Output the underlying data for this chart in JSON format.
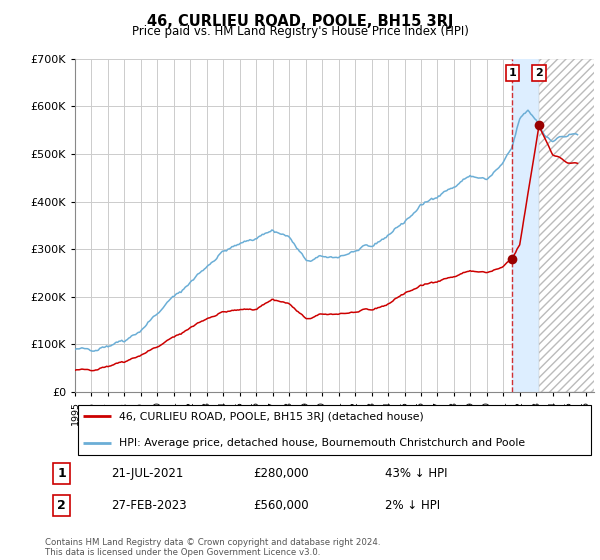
{
  "title": "46, CURLIEU ROAD, POOLE, BH15 3RJ",
  "subtitle": "Price paid vs. HM Land Registry's House Price Index (HPI)",
  "legend_line1": "46, CURLIEU ROAD, POOLE, BH15 3RJ (detached house)",
  "legend_line2": "HPI: Average price, detached house, Bournemouth Christchurch and Poole",
  "transaction1_date": "21-JUL-2021",
  "transaction1_price": "£280,000",
  "transaction1_pct": "43% ↓ HPI",
  "transaction2_date": "27-FEB-2023",
  "transaction2_price": "£560,000",
  "transaction2_pct": "2% ↓ HPI",
  "footer": "Contains HM Land Registry data © Crown copyright and database right 2024.\nThis data is licensed under the Open Government Licence v3.0.",
  "hpi_color": "#6baed6",
  "price_color": "#cc0000",
  "marker_color": "#990000",
  "highlight_color": "#ddeeff",
  "dashed_color": "#cc0000",
  "grid_color": "#cccccc",
  "ylim": [
    0,
    700000
  ],
  "xlim_start": 1995,
  "xlim_end": 2026.5,
  "transaction1_year": 2021.54,
  "transaction2_year": 2023.16,
  "transaction1_price_val": 280000,
  "transaction2_price_val": 560000,
  "hpi_keypoints_x": [
    1995,
    1996,
    1997,
    1998,
    1999,
    2000,
    2001,
    2002,
    2003,
    2004,
    2005,
    2006,
    2007,
    2008,
    2009,
    2010,
    2011,
    2012,
    2013,
    2014,
    2015,
    2016,
    2017,
    2018,
    2019,
    2020,
    2021,
    2021.5,
    2022,
    2022.5,
    2023.0,
    2023.5,
    2024,
    2024.5,
    2025,
    2025.5
  ],
  "hpi_keypoints_y": [
    88000,
    90000,
    98000,
    110000,
    130000,
    165000,
    200000,
    230000,
    265000,
    295000,
    310000,
    325000,
    340000,
    325000,
    275000,
    282000,
    285000,
    295000,
    305000,
    330000,
    358000,
    390000,
    415000,
    430000,
    455000,
    445000,
    480000,
    510000,
    575000,
    590000,
    572000,
    540000,
    530000,
    535000,
    540000,
    540000
  ],
  "price_keypoints_x": [
    1995,
    1996,
    1997,
    1998,
    1999,
    2000,
    2001,
    2002,
    2003,
    2004,
    2005,
    2006,
    2007,
    2008,
    2009,
    2010,
    2011,
    2012,
    2013,
    2014,
    2015,
    2016,
    2017,
    2018,
    2019,
    2020,
    2021.0,
    2021.54,
    2022.0,
    2023.16,
    2023.5,
    2024,
    2025
  ],
  "price_keypoints_y": [
    45000,
    47000,
    55000,
    65000,
    78000,
    95000,
    115000,
    135000,
    155000,
    168000,
    172000,
    175000,
    195000,
    185000,
    153000,
    162000,
    165000,
    167000,
    172000,
    185000,
    208000,
    222000,
    235000,
    242000,
    255000,
    250000,
    262000,
    280000,
    310000,
    560000,
    535000,
    500000,
    480000
  ]
}
